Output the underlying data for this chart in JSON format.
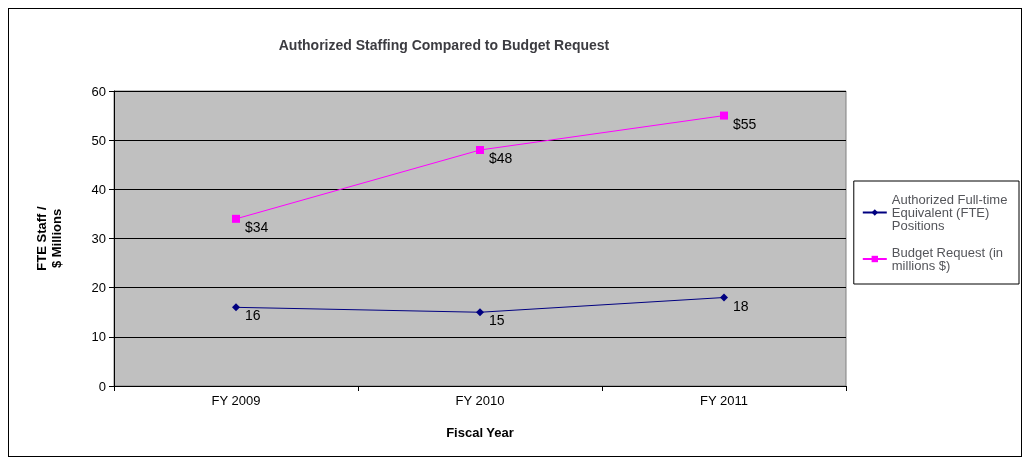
{
  "chart_data": {
    "type": "line",
    "title": "Authorized Staffing Compared to Budget Request",
    "xlabel": "Fiscal Year",
    "ylabel": "FTE Staff /\n$ Millions",
    "categories": [
      "FY 2009",
      "FY 2010",
      "FY 2011"
    ],
    "series": [
      {
        "name": "Authorized Full-time Equivalent (FTE) Positions",
        "color": "#000080",
        "marker": "diamond",
        "values": [
          16,
          15,
          18
        ],
        "value_labels": [
          "16",
          "15",
          "18"
        ]
      },
      {
        "name": "Budget Request (in millions $)",
        "color": "#ff00ff",
        "marker": "square",
        "values": [
          34,
          48,
          55
        ],
        "value_labels": [
          "$34",
          "$48",
          "$55"
        ]
      }
    ],
    "ylim": [
      0,
      60
    ],
    "yticks": [
      0,
      10,
      20,
      30,
      40,
      50,
      60
    ],
    "grid": "y",
    "legend": "right"
  }
}
